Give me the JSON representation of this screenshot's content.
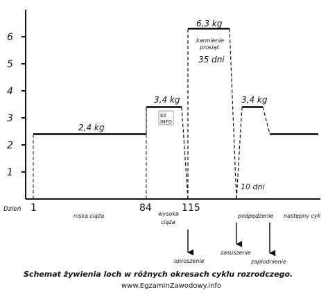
{
  "chart_data": {
    "type": "line",
    "title": "",
    "caption": "Schemat żywienia loch w różnych okresach cyklu rozrodczego.",
    "watermark_text": "www.EgzaminZawodowy.info",
    "logo_text": "EZ INFO",
    "xlabel": "Dzień",
    "ylabel": "",
    "ylim": [
      0,
      7
    ],
    "yticks": [
      1,
      2,
      3,
      4,
      5,
      6
    ],
    "x_ticks": [
      {
        "day": "1",
        "label": "1"
      },
      {
        "day": "84",
        "label": "84"
      },
      {
        "day": "115",
        "label": "115"
      }
    ],
    "series": [
      {
        "values_description": "feeding amount (kg) across reproductive cycle",
        "points": [
          {
            "x": "1",
            "y": 2.4
          },
          {
            "x": "84",
            "y": 2.4
          },
          {
            "x": "84",
            "y": 3.4
          },
          {
            "x": "~110",
            "y": 3.4
          },
          {
            "x": "115",
            "y": 0
          },
          {
            "x": "115",
            "y": 6.3
          },
          {
            "x": "~150",
            "y": 6.3
          },
          {
            "x": "~150+10",
            "y": 0
          },
          {
            "x": "~160",
            "y": 3.4
          },
          {
            "x": "~172",
            "y": 3.4
          },
          {
            "x": "~180",
            "y": 2.4
          }
        ]
      }
    ],
    "value_labels": [
      "2,4 kg",
      "3,4 kg",
      "6,3 kg",
      "3,4 kg"
    ],
    "annotations": {
      "lactation_top": "karmienie",
      "lactation_bottom": "prosiąt",
      "lactation_days": "35 dni",
      "dry_days": "10 dni"
    },
    "phases": {
      "early_pregnancy": "niska ciąża",
      "late_pregnancy_top": "wysoka",
      "late_pregnancy_bottom": "ciąża",
      "flushing": "podpędzenie",
      "next_cycle": "następny cyk"
    },
    "events": [
      "oproszenie",
      "zasuszenie",
      "zapłodnienie"
    ]
  }
}
